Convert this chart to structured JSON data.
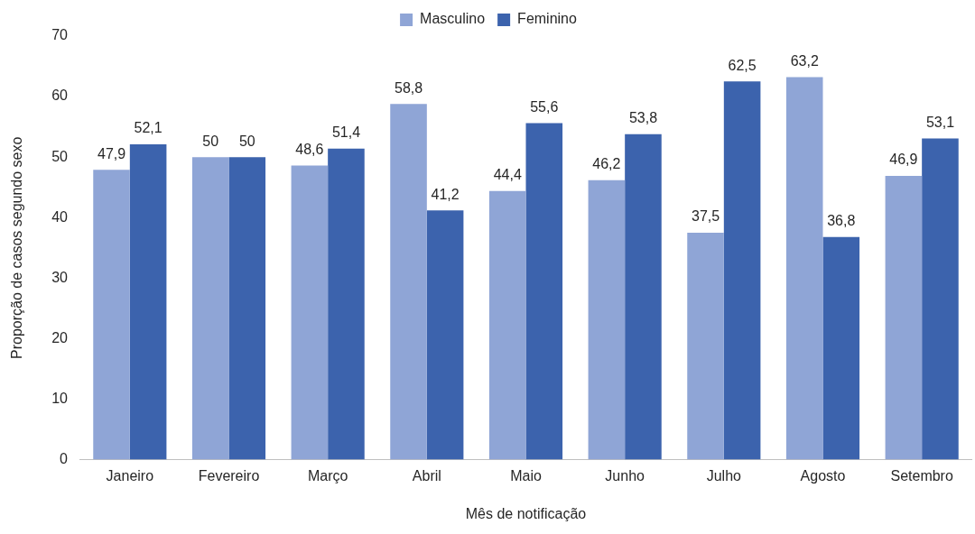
{
  "chart_data": {
    "type": "bar",
    "xlabel": "Mês de notificação",
    "ylabel": "Proporção de casos segundo sexo",
    "categories": [
      "Janeiro",
      "Fevereiro",
      "Março",
      "Abril",
      "Maio",
      "Junho",
      "Julho",
      "Agosto",
      "Setembro"
    ],
    "series": [
      {
        "name": "Masculino",
        "color": "#8fa5d6",
        "values": [
          47.9,
          50,
          48.6,
          58.8,
          44.4,
          46.2,
          37.5,
          63.2,
          46.9
        ],
        "value_labels": [
          "47,9",
          "50",
          "48,6",
          "58,8",
          "44,4",
          "46,2",
          "37,5",
          "63,2",
          "46,9"
        ]
      },
      {
        "name": "Feminino",
        "color": "#3c63ad",
        "values": [
          52.1,
          50,
          51.4,
          41.2,
          55.6,
          53.8,
          62.5,
          36.8,
          53.1
        ],
        "value_labels": [
          "52,1",
          "50",
          "51,4",
          "41,2",
          "55,6",
          "53,8",
          "62,5",
          "36,8",
          "53,1"
        ]
      }
    ],
    "ylim": [
      0,
      70
    ],
    "yticks": [
      0,
      10,
      20,
      30,
      40,
      50,
      60,
      70
    ],
    "grid": false,
    "legend": "top"
  }
}
